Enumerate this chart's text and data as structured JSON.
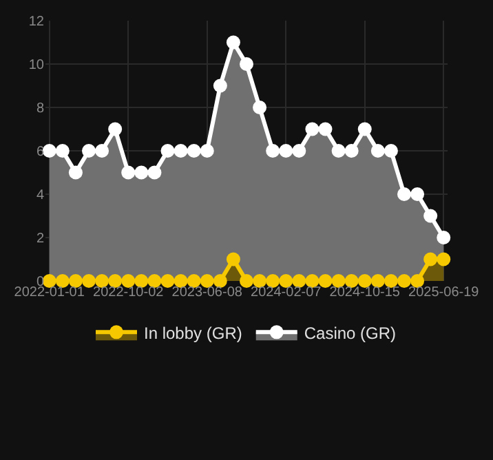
{
  "chart_data": {
    "type": "area",
    "categories": [
      "2022-01-01",
      null,
      null,
      null,
      null,
      null,
      "2022-10-02",
      null,
      null,
      null,
      null,
      null,
      "2023-06-08",
      null,
      null,
      null,
      null,
      null,
      "2024-02-07",
      null,
      null,
      null,
      null,
      null,
      "2024-10-15",
      null,
      null,
      null,
      null,
      null,
      "2025-06-19"
    ],
    "series": [
      {
        "name": "Casino (GR)",
        "color": "#ffffff",
        "values": [
          6,
          6,
          5,
          6,
          6,
          7,
          5,
          5,
          5,
          6,
          6,
          6,
          6,
          9,
          11,
          10,
          8,
          6,
          6,
          6,
          7,
          7,
          6,
          6,
          7,
          6,
          6,
          4,
          4,
          3,
          2
        ]
      },
      {
        "name": "In lobby (GR)",
        "color": "#f5c800",
        "values": [
          0,
          0,
          0,
          0,
          0,
          0,
          0,
          0,
          0,
          0,
          0,
          0,
          0,
          0,
          1,
          0,
          0,
          0,
          0,
          0,
          0,
          0,
          0,
          0,
          0,
          0,
          0,
          0,
          0,
          1,
          1
        ]
      }
    ],
    "ylim": [
      0,
      12
    ],
    "yticks": [
      0,
      2,
      4,
      6,
      8,
      10,
      12
    ],
    "grid": true,
    "legend": "bottom",
    "marker": "circle"
  }
}
